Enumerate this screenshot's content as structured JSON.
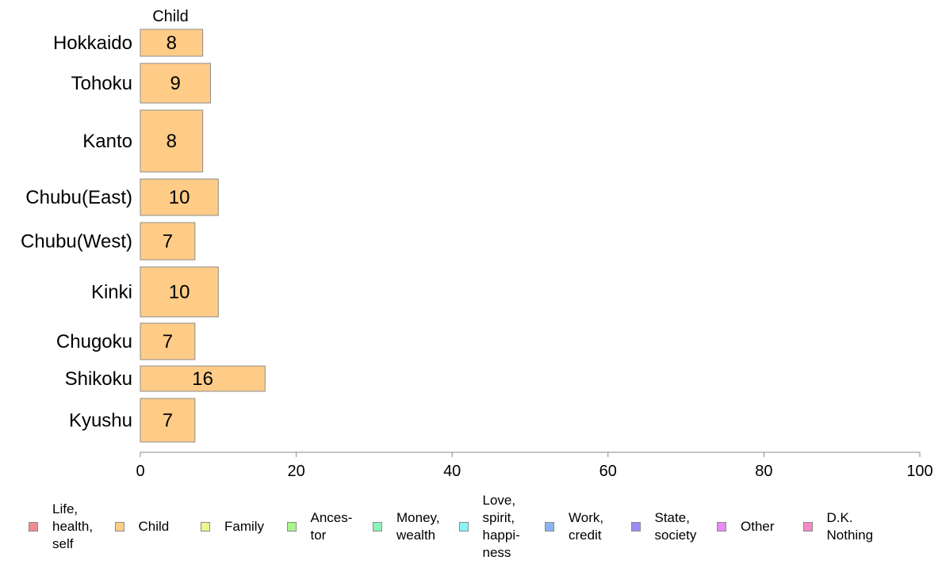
{
  "chart_data": {
    "type": "bar",
    "orientation": "horizontal",
    "categories": [
      "Hokkaido",
      "Tohoku",
      "Kanto",
      "Chubu(East)",
      "Chubu(West)",
      "Kinki",
      "Chugoku",
      "Shikoku",
      "Kyushu"
    ],
    "series": [
      {
        "name": "Child",
        "values": [
          8,
          9,
          8,
          10,
          7,
          10,
          7,
          16,
          7
        ],
        "color": "#ffcc88"
      }
    ],
    "xlim": [
      0,
      100
    ],
    "xticks": [
      0,
      20,
      40,
      60,
      80,
      100
    ],
    "grid": false,
    "legend_position": "bottom",
    "legend": [
      {
        "label": "Life,\nhealth,\nself",
        "color": "#f28b8b"
      },
      {
        "label": "Child",
        "color": "#ffcc88"
      },
      {
        "label": "Family",
        "color": "#eef58a"
      },
      {
        "label": "Ances-\ntor",
        "color": "#a8f58a"
      },
      {
        "label": "Money,\nwealth",
        "color": "#8af5b8"
      },
      {
        "label": "Love,\nspirit,\nhappi-\nness",
        "color": "#8af5f5"
      },
      {
        "label": "Work,\ncredit",
        "color": "#8ab4f5"
      },
      {
        "label": "State,\nsociety",
        "color": "#9f8af5"
      },
      {
        "label": "Other",
        "color": "#e98af5"
      },
      {
        "label": "D.K.\nNothing",
        "color": "#f58ac8"
      }
    ]
  }
}
